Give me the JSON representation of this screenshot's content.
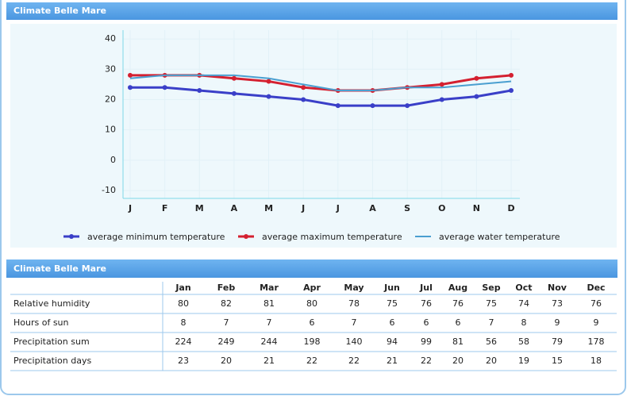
{
  "chart_panel": {
    "title": "Climate Belle Mare"
  },
  "chart_data": {
    "type": "line",
    "categories": [
      "J",
      "F",
      "M",
      "A",
      "M",
      "J",
      "J",
      "A",
      "S",
      "O",
      "N",
      "D"
    ],
    "series": [
      {
        "name": "average minimum temperature",
        "color": "#3a3fc8",
        "marker": true,
        "values": [
          24,
          24,
          23,
          22,
          21,
          20,
          18,
          18,
          18,
          20,
          21,
          23
        ]
      },
      {
        "name": "average maximum temperature",
        "color": "#d42030",
        "marker": true,
        "values": [
          28,
          28,
          28,
          27,
          26,
          24,
          23,
          23,
          24,
          25,
          27,
          28
        ]
      },
      {
        "name": "average water temperature",
        "color": "#4a9fd0",
        "marker": false,
        "values": [
          27,
          28,
          28,
          28,
          27,
          25,
          23,
          23,
          24,
          24,
          25,
          26
        ]
      }
    ],
    "ylim": [
      -12.6,
      42.9
    ],
    "yticks": [
      -10,
      0,
      10,
      20,
      30,
      40
    ],
    "grid": true,
    "legend": "bottom"
  },
  "table": {
    "title": "Climate Belle Mare",
    "columns": [
      "Jan",
      "Feb",
      "Mar",
      "Apr",
      "May",
      "Jun",
      "Jul",
      "Aug",
      "Sep",
      "Oct",
      "Nov",
      "Dec"
    ],
    "rows": [
      [
        "Relative humidity",
        80,
        82,
        81,
        80,
        78,
        75,
        76,
        76,
        75,
        74,
        73,
        76
      ],
      [
        "Hours of sun",
        8,
        7,
        7,
        6,
        7,
        6,
        6,
        6,
        7,
        8,
        9,
        9
      ],
      [
        "Precipitation sum",
        224,
        249,
        244,
        198,
        140,
        94,
        99,
        81,
        56,
        58,
        79,
        178
      ],
      [
        "Precipitation days",
        23,
        20,
        21,
        22,
        22,
        21,
        22,
        20,
        20,
        19,
        15,
        18
      ]
    ]
  }
}
